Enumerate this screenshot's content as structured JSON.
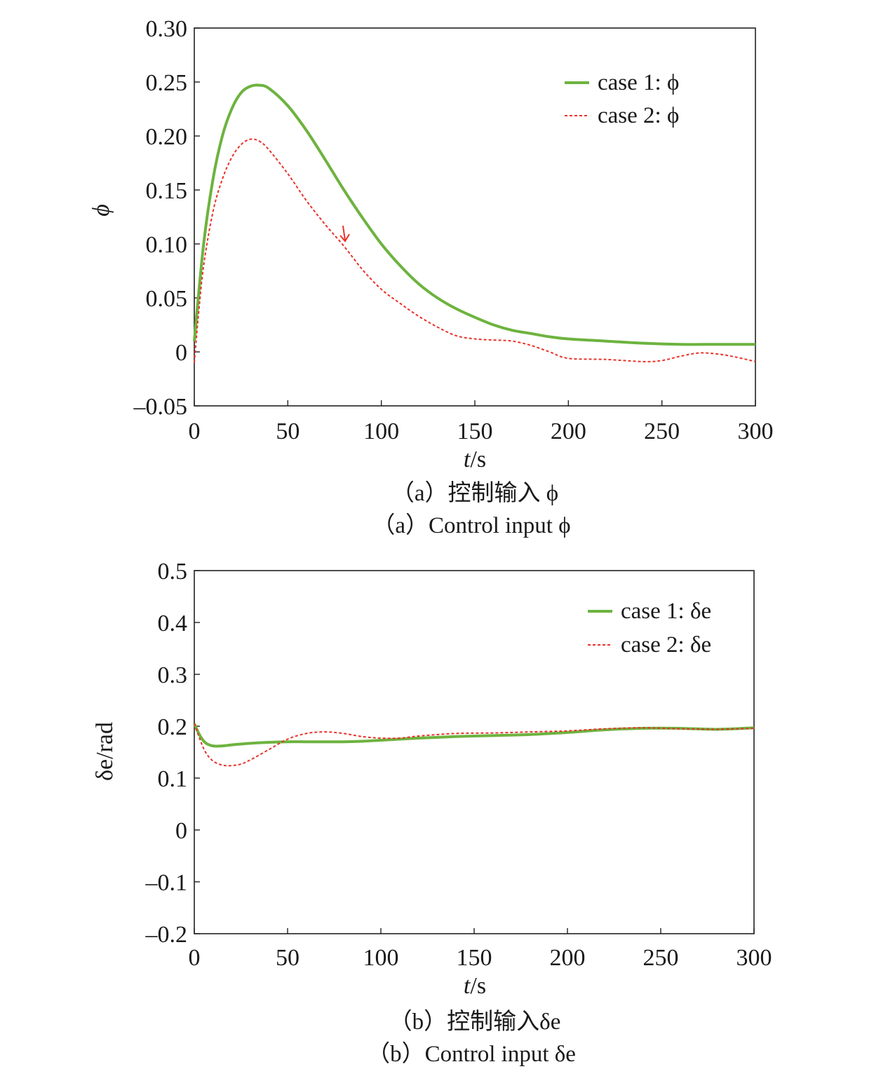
{
  "figure": {
    "panels": [
      {
        "caption_cn": "（a）控制输入 ϕ",
        "caption_en": "（a）Control input ϕ"
      },
      {
        "caption_cn": "（b）控制输入δe",
        "caption_en": "（b）Control input δe"
      }
    ]
  },
  "chart_data": [
    {
      "type": "line",
      "xlabel": "t/s",
      "ylabel": "ϕ",
      "xlim": [
        0,
        300
      ],
      "ylim": [
        -0.05,
        0.3
      ],
      "xticks": [
        0,
        50,
        100,
        150,
        200,
        250,
        300
      ],
      "xtick_labels": [
        "0",
        "50",
        "100",
        "150",
        "200",
        "250",
        "300"
      ],
      "yticks": [
        -0.05,
        0,
        0.05,
        0.1,
        0.15,
        0.2,
        0.25,
        0.3
      ],
      "ytick_labels": [
        "–0.05",
        "0",
        "0.05",
        "0.10",
        "0.15",
        "0.20",
        "0.25",
        "0.30"
      ],
      "grid": false,
      "legend": "top-right",
      "series": [
        {
          "name": "case 1: ϕ",
          "color": "#6db33f",
          "style": "solid",
          "x": [
            0,
            5,
            10,
            15,
            20,
            25,
            30,
            35,
            40,
            50,
            60,
            70,
            80,
            90,
            100,
            110,
            120,
            130,
            140,
            150,
            160,
            170,
            180,
            190,
            200,
            220,
            240,
            260,
            280,
            300
          ],
          "y": [
            0.01,
            0.1,
            0.16,
            0.2,
            0.225,
            0.24,
            0.246,
            0.247,
            0.244,
            0.228,
            0.205,
            0.178,
            0.15,
            0.124,
            0.1,
            0.08,
            0.063,
            0.05,
            0.04,
            0.032,
            0.025,
            0.02,
            0.017,
            0.014,
            0.012,
            0.01,
            0.008,
            0.007,
            0.007,
            0.007
          ]
        },
        {
          "name": "case 2: ϕ",
          "color": "#e8332a",
          "style": "dashed",
          "x": [
            0,
            2,
            5,
            10,
            15,
            20,
            25,
            30,
            35,
            40,
            50,
            60,
            70,
            80,
            90,
            100,
            110,
            120,
            130,
            140,
            150,
            160,
            170,
            180,
            190,
            200,
            220,
            240,
            250,
            260,
            270,
            280,
            290,
            300
          ],
          "y": [
            -0.01,
            0.03,
            0.08,
            0.13,
            0.16,
            0.18,
            0.192,
            0.197,
            0.195,
            0.187,
            0.165,
            0.14,
            0.118,
            0.098,
            0.076,
            0.058,
            0.045,
            0.033,
            0.023,
            0.015,
            0.012,
            0.011,
            0.01,
            0.006,
            0.0,
            -0.006,
            -0.007,
            -0.009,
            -0.008,
            -0.004,
            -0.001,
            -0.002,
            -0.005,
            -0.009
          ]
        }
      ]
    },
    {
      "type": "line",
      "xlabel": "t/s",
      "ylabel": "δe/rad",
      "xlim": [
        0,
        300
      ],
      "ylim": [
        -0.2,
        0.5
      ],
      "xticks": [
        0,
        50,
        100,
        150,
        200,
        250,
        300
      ],
      "xtick_labels": [
        "0",
        "50",
        "100",
        "150",
        "200",
        "250",
        "300"
      ],
      "yticks": [
        -0.2,
        -0.1,
        0,
        0.1,
        0.2,
        0.3,
        0.4,
        0.5
      ],
      "ytick_labels": [
        "–0.2",
        "–0.1",
        "0",
        "0.1",
        "0.2",
        "0.3",
        "0.4",
        "0.5"
      ],
      "grid": false,
      "legend": "top-right",
      "series": [
        {
          "name": "case 1: δe",
          "color": "#6db33f",
          "style": "solid",
          "x": [
            0,
            3,
            6,
            10,
            15,
            20,
            30,
            40,
            50,
            60,
            70,
            80,
            90,
            100,
            120,
            140,
            160,
            180,
            200,
            220,
            240,
            260,
            280,
            300
          ],
          "y": [
            0.205,
            0.182,
            0.168,
            0.162,
            0.162,
            0.164,
            0.167,
            0.169,
            0.17,
            0.17,
            0.17,
            0.17,
            0.171,
            0.173,
            0.177,
            0.18,
            0.182,
            0.184,
            0.188,
            0.193,
            0.196,
            0.196,
            0.194,
            0.197
          ]
        },
        {
          "name": "case 2: δe",
          "color": "#e8332a",
          "style": "dashed",
          "x": [
            0,
            3,
            6,
            10,
            15,
            20,
            25,
            30,
            40,
            50,
            60,
            70,
            80,
            90,
            100,
            110,
            120,
            140,
            160,
            180,
            200,
            220,
            240,
            260,
            280,
            300
          ],
          "y": [
            0.205,
            0.175,
            0.15,
            0.133,
            0.125,
            0.124,
            0.127,
            0.135,
            0.155,
            0.175,
            0.186,
            0.189,
            0.186,
            0.18,
            0.177,
            0.177,
            0.181,
            0.186,
            0.187,
            0.189,
            0.191,
            0.195,
            0.197,
            0.195,
            0.194,
            0.196
          ]
        }
      ]
    }
  ]
}
